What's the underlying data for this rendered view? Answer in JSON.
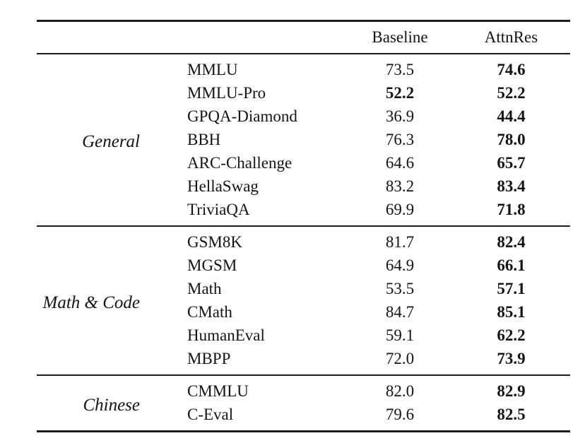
{
  "table": {
    "header": {
      "baseline": "Baseline",
      "attnres": "AttnRes"
    },
    "groups": [
      {
        "label": "General",
        "rows": [
          {
            "name": "MMLU",
            "baseline": "73.5",
            "baseline_bold": false,
            "attnres": "74.6",
            "attnres_bold": true
          },
          {
            "name": "MMLU-Pro",
            "baseline": "52.2",
            "baseline_bold": true,
            "attnres": "52.2",
            "attnres_bold": true
          },
          {
            "name": "GPQA-Diamond",
            "baseline": "36.9",
            "baseline_bold": false,
            "attnres": "44.4",
            "attnres_bold": true
          },
          {
            "name": "BBH",
            "baseline": "76.3",
            "baseline_bold": false,
            "attnres": "78.0",
            "attnres_bold": true
          },
          {
            "name": "ARC-Challenge",
            "baseline": "64.6",
            "baseline_bold": false,
            "attnres": "65.7",
            "attnres_bold": true
          },
          {
            "name": "HellaSwag",
            "baseline": "83.2",
            "baseline_bold": false,
            "attnres": "83.4",
            "attnres_bold": true
          },
          {
            "name": "TriviaQA",
            "baseline": "69.9",
            "baseline_bold": false,
            "attnres": "71.8",
            "attnres_bold": true
          }
        ]
      },
      {
        "label": "Math & Code",
        "rows": [
          {
            "name": "GSM8K",
            "baseline": "81.7",
            "baseline_bold": false,
            "attnres": "82.4",
            "attnres_bold": true
          },
          {
            "name": "MGSM",
            "baseline": "64.9",
            "baseline_bold": false,
            "attnres": "66.1",
            "attnres_bold": true
          },
          {
            "name": "Math",
            "baseline": "53.5",
            "baseline_bold": false,
            "attnres": "57.1",
            "attnres_bold": true
          },
          {
            "name": "CMath",
            "baseline": "84.7",
            "baseline_bold": false,
            "attnres": "85.1",
            "attnres_bold": true
          },
          {
            "name": "HumanEval",
            "baseline": "59.1",
            "baseline_bold": false,
            "attnres": "62.2",
            "attnres_bold": true
          },
          {
            "name": "MBPP",
            "baseline": "72.0",
            "baseline_bold": false,
            "attnres": "73.9",
            "attnres_bold": true
          }
        ]
      },
      {
        "label": "Chinese",
        "rows": [
          {
            "name": "CMMLU",
            "baseline": "82.0",
            "baseline_bold": false,
            "attnres": "82.9",
            "attnres_bold": true
          },
          {
            "name": "C-Eval",
            "baseline": "79.6",
            "baseline_bold": false,
            "attnres": "82.5",
            "attnres_bold": true
          }
        ]
      }
    ]
  },
  "colors": {
    "text": "#141414",
    "rule": "#1c1c1c",
    "background": "#ffffff"
  }
}
